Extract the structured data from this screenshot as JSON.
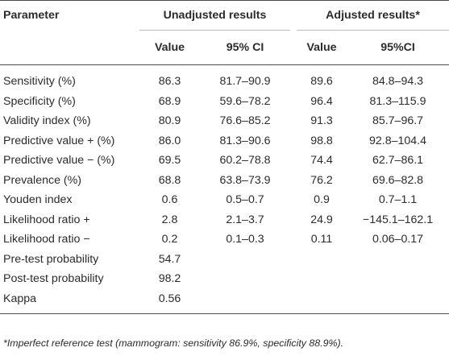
{
  "table": {
    "header": {
      "parameter": "Parameter",
      "unadjusted": "Unadjusted results",
      "adjusted": "Adjusted results*",
      "value1": "Value",
      "ci1": "95% CI",
      "value2": "Value",
      "ci2": "95%CI"
    },
    "rows": [
      {
        "name": "Sensitivity (%)",
        "v1": "86.3",
        "ci1": "81.7–90.9",
        "v2": "89.6",
        "ci2": "84.8–94.3"
      },
      {
        "name": "Specificity (%)",
        "v1": "68.9",
        "ci1": "59.6–78.2",
        "v2": "96.4",
        "ci2": "81.3–115.9"
      },
      {
        "name": "Validity index (%)",
        "v1": "80.9",
        "ci1": "76.6–85.2",
        "v2": "91.3",
        "ci2": "85.7–96.7"
      },
      {
        "name": "Predictive value + (%)",
        "v1": "86.0",
        "ci1": "81.3–90.6",
        "v2": "98.8",
        "ci2": "92.8–104.4"
      },
      {
        "name": "Predictive value − (%)",
        "v1": "69.5",
        "ci1": "60.2–78.8",
        "v2": "74.4",
        "ci2": "62.7–86.1"
      },
      {
        "name": "Prevalence (%)",
        "v1": "68.8",
        "ci1": "63.8–73.9",
        "v2": "76.2",
        "ci2": "69.6–82.8"
      },
      {
        "name": "Youden index",
        "v1": "0.6",
        "ci1": "0.5–0.7",
        "v2": "0.9",
        "ci2": "0.7–1.1"
      },
      {
        "name": "Likelihood ratio +",
        "v1": "2.8",
        "ci1": "2.1–3.7",
        "v2": "24.9",
        "ci2": "−145.1–162.1"
      },
      {
        "name": "Likelihood ratio −",
        "v1": "0.2",
        "ci1": "0.1–0.3",
        "v2": "0.11",
        "ci2": "0.06–0.17"
      },
      {
        "name": "Pre-test probability",
        "v1": "54.7",
        "ci1": "",
        "v2": "",
        "ci2": ""
      },
      {
        "name": "Post-test probability",
        "v1": "98.2",
        "ci1": "",
        "v2": "",
        "ci2": ""
      },
      {
        "name": "Kappa",
        "v1": "0.56",
        "ci1": "",
        "v2": "",
        "ci2": ""
      }
    ]
  },
  "footnote": "*Imperfect reference test (mammogram: sensitivity 86.9%, specificity 88.9%)."
}
